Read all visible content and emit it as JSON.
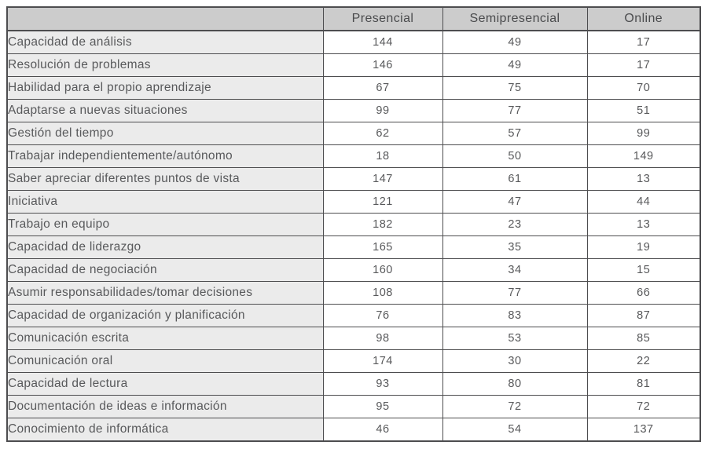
{
  "chart_data": {
    "type": "table",
    "title": "",
    "columns": [
      "Presencial",
      "Semipresencial",
      "Online"
    ],
    "rows": [
      {
        "label": "Capacidad de análisis",
        "values": [
          144,
          49,
          17
        ]
      },
      {
        "label": "Resolución de problemas",
        "values": [
          146,
          49,
          17
        ]
      },
      {
        "label": "Habilidad para el propio aprendizaje",
        "values": [
          67,
          75,
          70
        ]
      },
      {
        "label": "Adaptarse a nuevas situaciones",
        "values": [
          99,
          77,
          51
        ]
      },
      {
        "label": "Gestión del tiempo",
        "values": [
          62,
          57,
          99
        ]
      },
      {
        "label": "Trabajar independientemente/autónomo",
        "values": [
          18,
          50,
          149
        ]
      },
      {
        "label": "Saber apreciar diferentes puntos de vista",
        "values": [
          147,
          61,
          13
        ]
      },
      {
        "label": "Iniciativa",
        "values": [
          121,
          47,
          44
        ]
      },
      {
        "label": "Trabajo en equipo",
        "values": [
          182,
          23,
          13
        ]
      },
      {
        "label": "Capacidad de liderazgo",
        "values": [
          165,
          35,
          19
        ]
      },
      {
        "label": "Capacidad de negociación",
        "values": [
          160,
          34,
          15
        ]
      },
      {
        "label": "Asumir responsabilidades/tomar decisiones",
        "values": [
          108,
          77,
          66
        ]
      },
      {
        "label": "Capacidad de organización y planificación",
        "values": [
          76,
          83,
          87
        ]
      },
      {
        "label": "Comunicación escrita",
        "values": [
          98,
          53,
          85
        ]
      },
      {
        "label": "Comunicación oral",
        "values": [
          174,
          30,
          22
        ]
      },
      {
        "label": "Capacidad de lectura",
        "values": [
          93,
          80,
          81
        ]
      },
      {
        "label": "Documentación de ideas e información",
        "values": [
          95,
          72,
          72
        ]
      },
      {
        "label": "Conocimiento de informática",
        "values": [
          46,
          54,
          137
        ]
      }
    ],
    "layout": {
      "grid": true,
      "header_background": "#cccccc",
      "label_column_background": "#ebebeb",
      "cell_background": "#ffffff",
      "border_color": "#4d4d4f",
      "text_color": "#58595b"
    }
  }
}
